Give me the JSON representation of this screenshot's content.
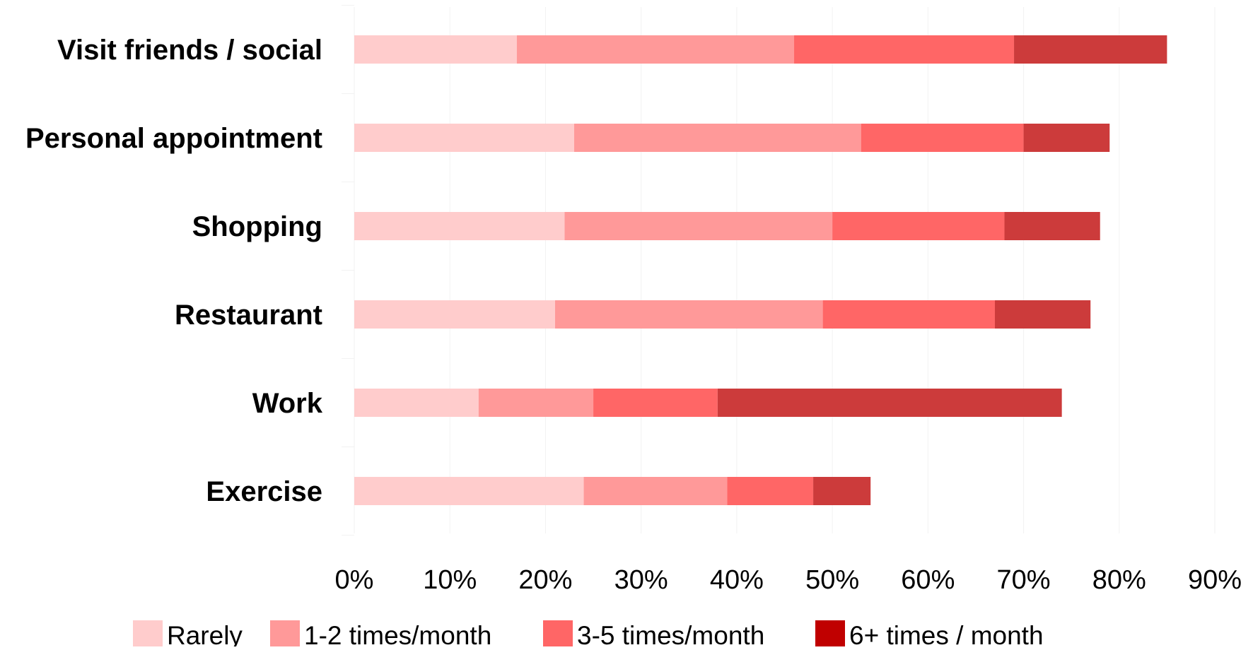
{
  "chart_data": {
    "type": "bar",
    "orientation": "horizontal",
    "stacked": true,
    "categories": [
      "Visit friends / social",
      "Personal appointment",
      "Shopping",
      "Restaurant",
      "Work",
      "Exercise"
    ],
    "series": [
      {
        "name": "Rarely",
        "color": "#ffcccc",
        "values": [
          17,
          23,
          22,
          21,
          13,
          24
        ]
      },
      {
        "name": "1-2 times/month",
        "color": "#ff9999",
        "values": [
          29,
          30,
          28,
          28,
          12,
          15
        ]
      },
      {
        "name": "3-5 times/month",
        "color": "#ff6666",
        "values": [
          23,
          17,
          18,
          18,
          13,
          9
        ]
      },
      {
        "name": "6+ times / month",
        "color": "#cc3b3b",
        "legend_color": "#c00000",
        "values": [
          16,
          9,
          10,
          10,
          36,
          6
        ]
      }
    ],
    "xlim": [
      0,
      90
    ],
    "x_ticks": [
      "0%",
      "10%",
      "20%",
      "30%",
      "40%",
      "50%",
      "60%",
      "70%",
      "80%",
      "90%"
    ],
    "grid": true,
    "legend": "bottom"
  }
}
